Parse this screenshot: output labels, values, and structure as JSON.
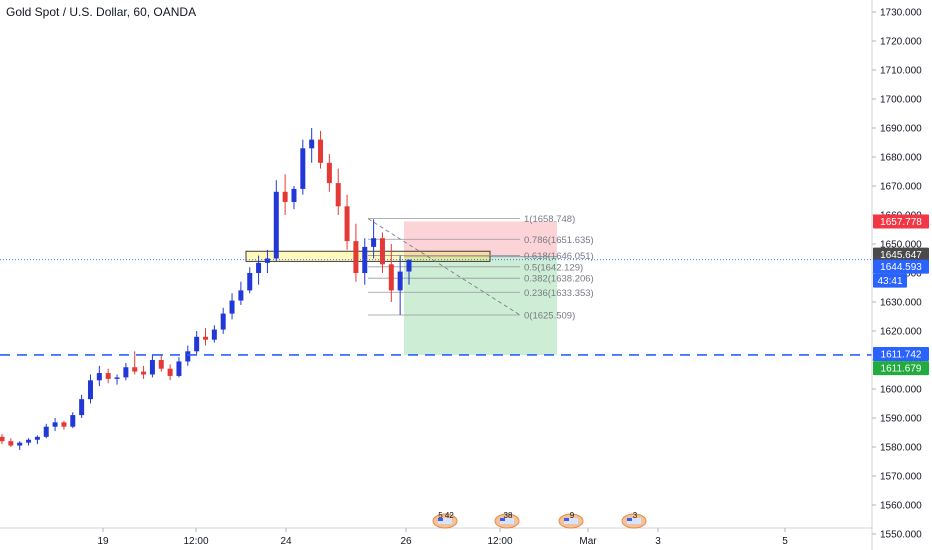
{
  "chart_data": {
    "type": "candlestick",
    "title": "Gold Spot / U.S. Dollar, 60, OANDA",
    "ylim": [
      1548,
      1733
    ],
    "y_ticks": [
      1550,
      1560,
      1570,
      1580,
      1590,
      1600,
      1610,
      1620,
      1630,
      1640,
      1650,
      1660,
      1670,
      1680,
      1690,
      1700,
      1710,
      1720,
      1730
    ],
    "x_ticks": [
      "19",
      "12:00",
      "24",
      "26",
      "12:00",
      "Mar",
      "3",
      "5"
    ],
    "grid": false,
    "colors": {
      "up": "#2138d7",
      "down": "#e53935",
      "hline": "#2962ff",
      "current": "#2962ff",
      "red_tag": "#f23645",
      "green_tag": "#22ab3e",
      "dark_tag": "#4a4a4a"
    },
    "series": [
      {
        "values": [
          [
            1583.5,
            1584.5,
            1581.0,
            1582.0
          ],
          [
            1582.0,
            1583.0,
            1580.0,
            1580.5
          ],
          [
            1580.5,
            1582.0,
            1579.0,
            1581.5
          ],
          [
            1581.5,
            1583.0,
            1580.5,
            1582.5
          ],
          [
            1582.5,
            1584.0,
            1581.0,
            1583.5
          ],
          [
            1583.5,
            1588.0,
            1583.0,
            1587.0
          ],
          [
            1587.0,
            1590.0,
            1585.5,
            1588.5
          ],
          [
            1588.5,
            1589.0,
            1586.0,
            1587.0
          ],
          [
            1587.0,
            1592.0,
            1586.5,
            1591.0
          ],
          [
            1591.0,
            1598.0,
            1590.0,
            1596.5
          ],
          [
            1596.5,
            1605.0,
            1595.0,
            1603.0
          ],
          [
            1603.0,
            1608.0,
            1601.0,
            1605.5
          ],
          [
            1605.5,
            1607.0,
            1602.0,
            1603.5
          ],
          [
            1603.5,
            1605.0,
            1601.5,
            1604.0
          ],
          [
            1604.0,
            1609.0,
            1603.0,
            1607.5
          ],
          [
            1607.5,
            1613.0,
            1605.0,
            1606.0
          ],
          [
            1606.0,
            1608.0,
            1603.5,
            1605.0
          ],
          [
            1605.0,
            1612.0,
            1604.0,
            1610.0
          ],
          [
            1610.0,
            1612.0,
            1606.0,
            1607.0
          ],
          [
            1607.0,
            1608.5,
            1603.0,
            1604.5
          ],
          [
            1604.5,
            1611.0,
            1604.0,
            1609.5
          ],
          [
            1609.5,
            1615.0,
            1608.0,
            1613.0
          ],
          [
            1613.0,
            1620.0,
            1612.0,
            1618.0
          ],
          [
            1618.0,
            1621.0,
            1615.0,
            1617.0
          ],
          [
            1617.0,
            1622.0,
            1616.0,
            1620.5
          ],
          [
            1620.5,
            1628.0,
            1619.0,
            1626.0
          ],
          [
            1626.0,
            1633.0,
            1624.0,
            1630.5
          ],
          [
            1630.5,
            1637.0,
            1629.0,
            1634.0
          ],
          [
            1634.0,
            1642.0,
            1633.0,
            1640.0
          ],
          [
            1640.0,
            1646.0,
            1636.0,
            1643.5
          ],
          [
            1643.5,
            1648.0,
            1640.0,
            1645.0
          ],
          [
            1645.0,
            1672.0,
            1644.0,
            1668.0
          ],
          [
            1668.0,
            1674.0,
            1660.0,
            1664.5
          ],
          [
            1664.5,
            1670.0,
            1662.0,
            1669.0
          ],
          [
            1669.0,
            1686.0,
            1667.0,
            1683.0
          ],
          [
            1683.0,
            1690.0,
            1678.0,
            1686.0
          ],
          [
            1686.0,
            1689.0,
            1676.0,
            1678.0
          ],
          [
            1678.0,
            1681.0,
            1668.0,
            1671.0
          ],
          [
            1671.0,
            1676.0,
            1660.0,
            1663.0
          ],
          [
            1663.0,
            1667.0,
            1648.0,
            1651.0
          ],
          [
            1651.0,
            1657.0,
            1637.0,
            1640.0
          ],
          [
            1640.0,
            1652.0,
            1636.0,
            1649.0
          ],
          [
            1649.0,
            1658.5,
            1645.0,
            1652.0
          ],
          [
            1652.0,
            1654.0,
            1640.0,
            1643.0
          ],
          [
            1643.0,
            1650.0,
            1630.0,
            1634.0
          ],
          [
            1634.0,
            1646.0,
            1625.5,
            1640.5
          ],
          [
            1640.5,
            1644.593,
            1636.0,
            1644.593
          ]
        ]
      }
    ],
    "hlines": [
      1611.742
    ],
    "current_price_line": 1644.593,
    "zone": {
      "from": 1644.0,
      "to": 1647.5
    },
    "fib_levels": [
      {
        "label": "1(1658.748)",
        "value": 1658.748
      },
      {
        "label": "0.786(1651.635)",
        "value": 1651.635
      },
      {
        "label": "0.618(1646.051)",
        "value": 1646.051
      },
      {
        "label": "0.5(1642.129)",
        "value": 1642.129
      },
      {
        "label": "0.382(1638.206)",
        "value": 1638.206
      },
      {
        "label": "0.236(1633.353)",
        "value": 1633.353
      },
      {
        "label": "0(1625.509)",
        "value": 1625.509
      }
    ],
    "position": {
      "entry": 1645.647,
      "stop": 1657.778,
      "target": 1611.742
    },
    "price_tags": [
      {
        "text": "1657.778",
        "value": 1657.778,
        "color": "#f23645"
      },
      {
        "text": "1645.647",
        "value": 1645.647,
        "color": "#4a4a4a"
      },
      {
        "text": "1644.593",
        "value": 1644.593,
        "color": "#2962ff"
      },
      {
        "text": "43:41",
        "value": 1641.9,
        "color": "#2962ff"
      },
      {
        "text": "1611.742",
        "value": 1611.742,
        "color": "#2962ff"
      },
      {
        "text": "1611.679",
        "value": 1611.679,
        "color": "#22ab3e"
      }
    ],
    "events": [
      "5 42",
      "38",
      "9",
      "3"
    ]
  }
}
